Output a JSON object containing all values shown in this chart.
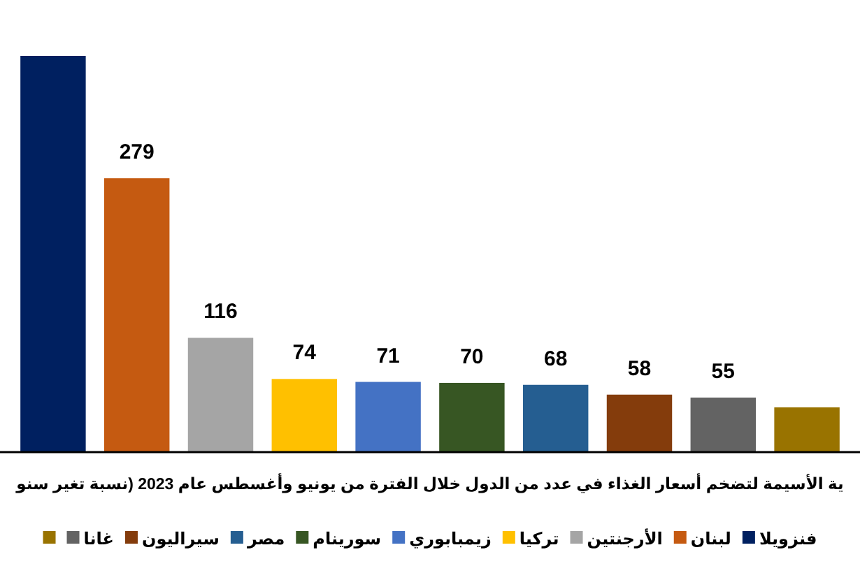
{
  "chart_data": {
    "type": "bar",
    "stacked": true,
    "title": "ية الأسيمة لتضخم أسعار الغذاء في عدد من الدول خلال الفترة من يونيو وأغسطس عام 2023 (نسبة تغير سنو",
    "categories": [
      null,
      null,
      null,
      null,
      null,
      null,
      null,
      null,
      null,
      null
    ],
    "series": [
      {
        "name": "فنزويلا",
        "color": "#002060",
        "values": [
          404,
          null,
          null,
          null,
          null,
          null,
          null,
          null,
          null,
          null
        ],
        "value_labels": [
          null,
          null,
          null,
          null,
          null,
          null,
          null,
          null,
          null,
          null
        ]
      },
      {
        "name": "لبنان",
        "color": "#c55a11",
        "values": [
          null,
          279,
          null,
          null,
          null,
          null,
          null,
          null,
          null,
          null
        ],
        "value_labels": [
          null,
          "279",
          null,
          null,
          null,
          null,
          null,
          null,
          null,
          null
        ]
      },
      {
        "name": "الأرجنتين",
        "color": "#a5a5a5",
        "values": [
          null,
          null,
          116,
          null,
          null,
          null,
          null,
          null,
          null,
          null
        ],
        "value_labels": [
          null,
          null,
          "116",
          null,
          null,
          null,
          null,
          null,
          null,
          null
        ]
      },
      {
        "name": "تركيا",
        "color": "#ffc000",
        "values": [
          null,
          null,
          null,
          74,
          null,
          null,
          null,
          null,
          null,
          null
        ],
        "value_labels": [
          null,
          null,
          null,
          "74",
          null,
          null,
          null,
          null,
          null,
          null
        ]
      },
      {
        "name": "زيمبابوري",
        "color": "#4472c4",
        "values": [
          null,
          null,
          null,
          null,
          71,
          null,
          null,
          null,
          null,
          null
        ],
        "value_labels": [
          null,
          null,
          null,
          null,
          "71",
          null,
          null,
          null,
          null,
          null
        ]
      },
      {
        "name": "سورينام",
        "color": "#375623",
        "values": [
          null,
          null,
          null,
          null,
          null,
          70,
          null,
          null,
          null,
          null
        ],
        "value_labels": [
          null,
          null,
          null,
          null,
          null,
          "70",
          null,
          null,
          null,
          null
        ]
      },
      {
        "name": "مصر",
        "color": "#255e91",
        "values": [
          null,
          null,
          null,
          null,
          null,
          null,
          68,
          null,
          null,
          null
        ],
        "value_labels": [
          null,
          null,
          null,
          null,
          null,
          null,
          "68",
          null,
          null,
          null
        ]
      },
      {
        "name": "سيراليون",
        "color": "#843c0c",
        "values": [
          null,
          null,
          null,
          null,
          null,
          null,
          null,
          58,
          null,
          null
        ],
        "value_labels": [
          null,
          null,
          null,
          null,
          null,
          null,
          null,
          "58",
          null,
          null
        ]
      },
      {
        "name": "غانا",
        "color": "#636363",
        "values": [
          null,
          null,
          null,
          null,
          null,
          null,
          null,
          null,
          55,
          null
        ],
        "value_labels": [
          null,
          null,
          null,
          null,
          null,
          null,
          null,
          null,
          "55",
          null
        ]
      },
      {
        "color": "#997300",
        "values": [
          null,
          null,
          null,
          null,
          null,
          null,
          null,
          null,
          null,
          45
        ],
        "value_labels": [
          null,
          null,
          null,
          null,
          null,
          null,
          null,
          null,
          null,
          null
        ]
      }
    ],
    "legend": "bottom"
  }
}
